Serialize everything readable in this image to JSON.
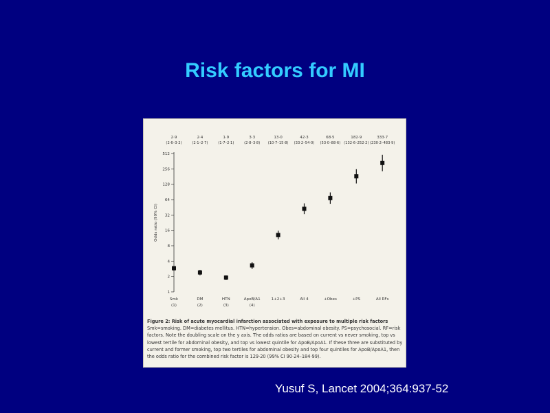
{
  "slide": {
    "title": "Risk factors for MI",
    "citation": "Yusuf S, Lancet 2004;364:937-52"
  },
  "figure": {
    "caption_title": "Figure 2: Risk of acute myocardial infarction associated with exposure to multiple risk factors",
    "caption_body": "Smk=smoking. DM=diabetes mellitus. HTN=hypertension. Obes=abdominal obesity. PS=psychosocial. RF=risk factors. Note the doubling scale on the y axis. The odds ratios are based on current vs never smoking, top vs lowest tertile for abdominal obesity, and top vs lowest quintile for ApoB/ApoA1. If these three are substituted by current and former smoking, top two tertiles for abdominal obesity and top four quintiles for ApoB/ApoA1, then the odds ratio for the combined risk factor is 129·20 (99% CI 90·24–184·99)."
  },
  "chart_data": {
    "type": "scatter",
    "ylabel": "Odds ratio (99% CI)",
    "yscale": "log2",
    "ylim": [
      1,
      512
    ],
    "yticks": [
      "1",
      "2",
      "4",
      "8",
      "16",
      "32",
      "64",
      "128",
      "256",
      "512"
    ],
    "grid": false,
    "categories": [
      "Smk",
      "DM",
      "HTN",
      "ApoB/A1",
      "1+2+3",
      "All 4",
      "+Obes",
      "+PS",
      "All RFs"
    ],
    "category_sublabels": [
      "(1)",
      "(2)",
      "(3)",
      "(4)",
      "",
      "",
      "",
      "",
      ""
    ],
    "or_labels": [
      "2·9",
      "2·4",
      "1·9",
      "3·3",
      "13·0",
      "42·3",
      "68·5",
      "182·9",
      "333·7"
    ],
    "ci_labels": [
      "(2·6–3·2)",
      "(2·1–2·7)",
      "(1·7–2·1)",
      "(2·8–3·8)",
      "(10·7–15·8)",
      "(33·2–54·0)",
      "(53·0–88·6)",
      "(132·6–252·2)",
      "(230·2–483·9)"
    ],
    "values": [
      2.9,
      2.4,
      1.9,
      3.3,
      13.0,
      42.3,
      68.5,
      182.9,
      333.7
    ],
    "ci_low": [
      2.6,
      2.1,
      1.7,
      2.8,
      10.7,
      33.2,
      53.0,
      132.6,
      230.2
    ],
    "ci_high": [
      3.2,
      2.7,
      2.1,
      3.8,
      15.8,
      54.0,
      88.6,
      252.2,
      483.9
    ]
  }
}
